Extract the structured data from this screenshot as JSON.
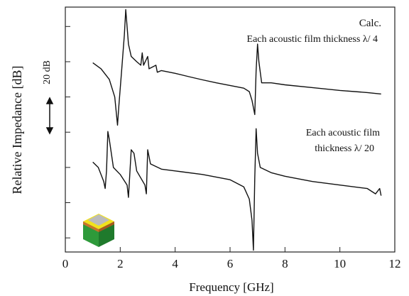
{
  "chart_data": {
    "type": "line",
    "xlabel": "Frequency [GHz]",
    "ylabel": "Relative Impedance [dB]",
    "scale_label": "20 dB",
    "annotations": [
      "Calc.",
      "Each acoustic film thickness λ/ 4",
      "Each acoustic film",
      "thickness λ/ 20"
    ],
    "xlim": [
      0,
      12
    ],
    "xticks": [
      0,
      2,
      4,
      6,
      8,
      10,
      12
    ],
    "ylim": [
      -8,
      131
    ],
    "yticks": [
      0,
      20,
      40,
      60,
      80,
      100,
      120
    ],
    "series": [
      {
        "color": "#111111",
        "x": [
          1.0,
          1.3,
          1.6,
          1.8,
          1.9,
          1.95,
          2.05,
          2.15,
          2.2,
          2.3,
          2.4,
          2.6,
          2.75,
          2.8,
          2.85,
          3.0,
          3.05,
          3.3,
          3.35,
          3.5,
          4.0,
          4.5,
          5.0,
          5.5,
          6.0,
          6.5,
          6.7,
          6.8,
          6.9,
          6.95,
          7.0,
          7.05,
          7.15,
          7.5,
          8.0,
          9.0,
          10.0,
          11.0,
          11.5
        ],
        "values": [
          99.4,
          96,
          90,
          80,
          64,
          75,
          95,
          115,
          129.6,
          110,
          103,
          100,
          98,
          105,
          98,
          103,
          96,
          98,
          94,
          95,
          93.4,
          91.5,
          89.7,
          88,
          86.5,
          85,
          83,
          78,
          70,
          95,
          110,
          100,
          88,
          88,
          86.9,
          85.3,
          83.7,
          82.5,
          81.7
        ]
      },
      {
        "color": "#111111",
        "x": [
          1.0,
          1.2,
          1.4,
          1.45,
          1.5,
          1.55,
          1.6,
          1.75,
          2.0,
          2.25,
          2.3,
          2.4,
          2.5,
          2.6,
          2.9,
          2.95,
          3.0,
          3.1,
          3.5,
          4.0,
          5.0,
          6.0,
          6.5,
          6.7,
          6.8,
          6.85,
          6.9,
          6.95,
          7.0,
          7.1,
          7.5,
          8.0,
          9.0,
          10.0,
          11.0,
          11.3,
          11.45,
          11.5
        ],
        "values": [
          43,
          40,
          32,
          28,
          38,
          60.4,
          56,
          40,
          36,
          30,
          23,
          50,
          48,
          38,
          30,
          25,
          50,
          42,
          39,
          38,
          36,
          33,
          29,
          22,
          10,
          -7,
          34,
          62,
          48,
          40,
          37,
          35,
          32,
          30,
          28,
          25,
          28,
          24
        ]
      }
    ]
  }
}
